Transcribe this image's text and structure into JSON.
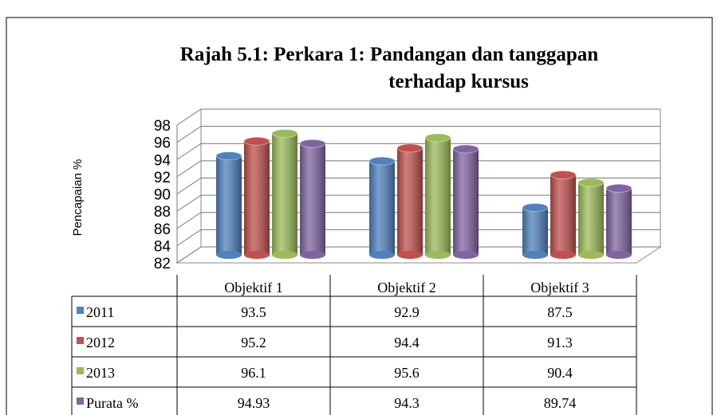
{
  "chart_data": {
    "type": "bar3d",
    "title_lines": [
      "Rajah 5.1: Perkara 1: Pandangan  dan tanggapan",
      "terhadap kursus"
    ],
    "y_label": "Pencapaian %",
    "categories": [
      "Objektif 1",
      "Objektif 2",
      "Objektif 3"
    ],
    "series": [
      {
        "name": "2011",
        "color": "#4f81bd",
        "values": [
          93.5,
          92.9,
          87.5
        ]
      },
      {
        "name": "2012",
        "color": "#c0504d",
        "values": [
          95.2,
          94.4,
          91.3
        ]
      },
      {
        "name": "2013",
        "color": "#9bbb59",
        "values": [
          96.1,
          95.6,
          90.4
        ]
      },
      {
        "name": "Purata %",
        "color": "#8064a2",
        "values": [
          94.93,
          94.3,
          89.74
        ]
      }
    ],
    "ylim": [
      82,
      98
    ],
    "yticks": [
      82,
      84,
      86,
      88,
      90,
      92,
      94,
      96,
      98
    ],
    "grid": true
  }
}
